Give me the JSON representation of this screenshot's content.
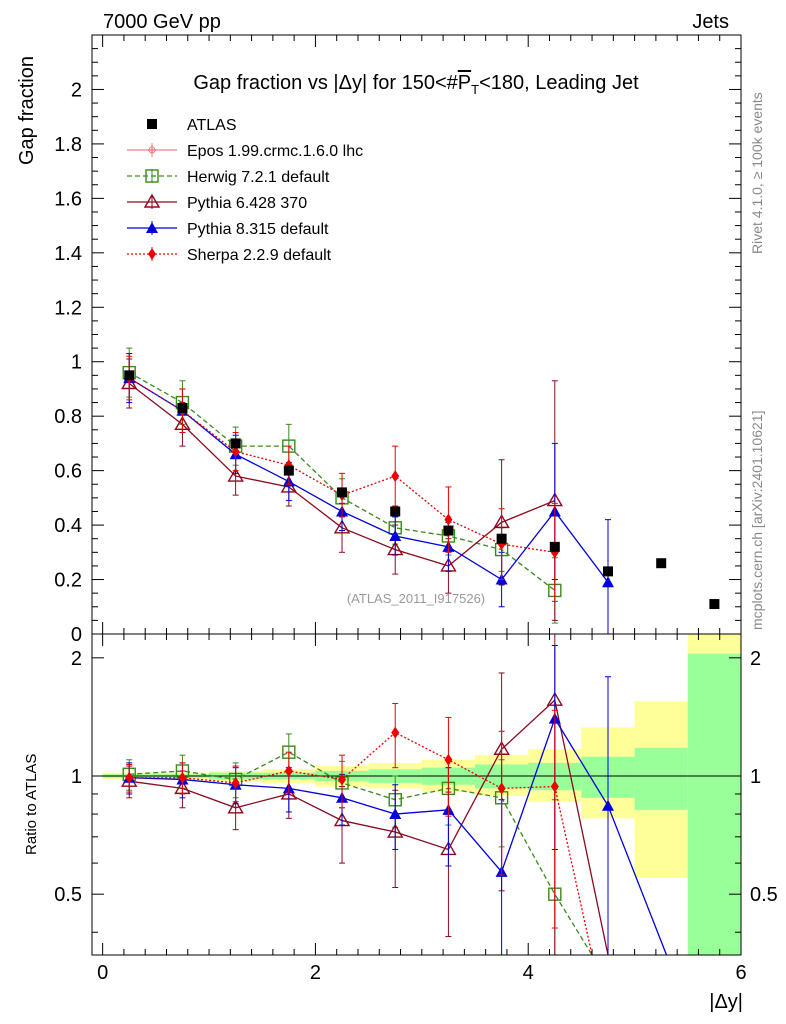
{
  "header": {
    "left": "7000 GeV pp",
    "right": "Jets"
  },
  "side_texts": {
    "rivet": "Rivet 4.1.0, ≥ 100k events",
    "mcplots": "mcplots.cern.ch [arXiv:2401.10621]"
  },
  "chart_data": {
    "type": "line",
    "title": "Gap fraction vs |Δy| for 150<#bar{P}_{T}<180, Leading Jet",
    "title_parts": {
      "pre": "Gap fraction vs |Δy| for 150<#",
      "p": "P",
      "sub": "T",
      "post": "<180, Leading Jet"
    },
    "xlabel": "|Δy|",
    "ylabel": "Gap fraction",
    "ratio_ylabel": "Ratio to ATLAS",
    "watermark": "(ATLAS_2011_I917526)",
    "xlim": [
      -0.1,
      6.0
    ],
    "ylim": [
      0,
      2.2
    ],
    "ratio_ylim": [
      0.35,
      2.3
    ],
    "x_ticks": [
      0,
      2,
      4,
      6
    ],
    "y_ticks": [
      0,
      0.2,
      0.4,
      0.6,
      0.8,
      1,
      1.2,
      1.4,
      1.6,
      1.8,
      2
    ],
    "ratio_ticks": [
      0.5,
      1,
      2
    ],
    "data": {
      "name": "ATLAS",
      "x": [
        0.25,
        0.75,
        1.25,
        1.75,
        2.25,
        2.75,
        3.25,
        3.75,
        4.25,
        4.75,
        5.25,
        5.75
      ],
      "y": [
        0.95,
        0.83,
        0.7,
        0.6,
        0.52,
        0.45,
        0.38,
        0.35,
        0.32,
        0.23,
        0.26,
        0.11
      ]
    },
    "ratio_band": {
      "edges": [
        0,
        0.5,
        1,
        1.5,
        2,
        2.5,
        3,
        3.5,
        4,
        4.5,
        5,
        5.5,
        6
      ],
      "green_lo": [
        0.99,
        0.99,
        0.98,
        0.98,
        0.97,
        0.96,
        0.95,
        0.93,
        0.92,
        0.88,
        0.82,
        0.35
      ],
      "green_hi": [
        1.01,
        1.01,
        1.02,
        1.02,
        1.03,
        1.04,
        1.05,
        1.07,
        1.08,
        1.12,
        1.18,
        2.05
      ],
      "yellow_lo": [
        0.98,
        0.98,
        0.97,
        0.96,
        0.94,
        0.93,
        0.91,
        0.89,
        0.86,
        0.78,
        0.55,
        0.35
      ],
      "yellow_hi": [
        1.02,
        1.02,
        1.03,
        1.04,
        1.06,
        1.08,
        1.1,
        1.13,
        1.17,
        1.33,
        1.55,
        2.4
      ]
    },
    "series": [
      {
        "name": "Epos 1.99.crmc.1.6.0 lhc",
        "color": "#f08080",
        "dash": "",
        "marker": "plus",
        "x": [],
        "y": [],
        "yerr": [],
        "ratio": [],
        "ratio_err": []
      },
      {
        "name": "Herwig 7.2.1 default",
        "color": "#3a8a1a",
        "dash": "5,3",
        "marker": "open-square",
        "x": [
          0.25,
          0.75,
          1.25,
          1.75,
          2.25,
          2.75,
          3.25,
          3.75,
          4.25
        ],
        "y": [
          0.96,
          0.85,
          0.69,
          0.69,
          0.5,
          0.39,
          0.36,
          0.31,
          0.16
        ],
        "yerr": [
          0.09,
          0.08,
          0.07,
          0.08,
          0.07,
          0.06,
          0.07,
          0.08,
          0.12
        ],
        "ratio": [
          1.01,
          1.03,
          0.98,
          1.15,
          0.96,
          0.87,
          0.93,
          0.88,
          0.5
        ],
        "ratio_err": [
          0.09,
          0.1,
          0.1,
          0.13,
          0.13,
          0.13,
          0.18,
          0.22,
          0.37
        ],
        "ratio_tail": [
          4.6,
          0.35
        ]
      },
      {
        "name": "Pythia 6.428 370",
        "color": "#8b0a1e",
        "dash": "",
        "marker": "open-triangle",
        "x": [
          0.25,
          0.75,
          1.25,
          1.75,
          2.25,
          2.75,
          3.25,
          3.75,
          4.25
        ],
        "y": [
          0.92,
          0.77,
          0.58,
          0.54,
          0.39,
          0.31,
          0.25,
          0.41,
          0.49
        ],
        "yerr": [
          0.09,
          0.08,
          0.07,
          0.07,
          0.09,
          0.09,
          0.1,
          0.23,
          0.44
        ],
        "ratio": [
          0.97,
          0.93,
          0.83,
          0.9,
          0.77,
          0.72,
          0.65,
          1.17,
          1.56
        ],
        "ratio_err": [
          0.09,
          0.1,
          0.1,
          0.12,
          0.17,
          0.2,
          0.26,
          0.66,
          1.37
        ],
        "ratio_tail": [
          4.75,
          0.35
        ]
      },
      {
        "name": "Pythia 8.315 default",
        "color": "#0000dd",
        "dash": "",
        "marker": "triangle",
        "x": [
          0.25,
          0.75,
          1.25,
          1.75,
          2.25,
          2.75,
          3.25,
          3.75,
          4.25,
          4.75
        ],
        "y": [
          0.94,
          0.82,
          0.66,
          0.56,
          0.45,
          0.36,
          0.32,
          0.2,
          0.45,
          0.19
        ],
        "yerr": [
          0.09,
          0.08,
          0.07,
          0.07,
          0.07,
          0.07,
          0.09,
          0.1,
          0.25,
          0.23
        ],
        "ratio": [
          0.99,
          0.98,
          0.95,
          0.93,
          0.88,
          0.8,
          0.82,
          0.57,
          1.4,
          0.84
        ],
        "ratio_err": [
          0.09,
          0.1,
          0.1,
          0.12,
          0.13,
          0.15,
          0.23,
          0.3,
          0.75,
          0.95
        ],
        "ratio_tail": [
          5.3,
          0.35
        ]
      },
      {
        "name": "Sherpa 2.2.9 default",
        "color": "#ee0000",
        "dash": "2,2",
        "marker": "diamond",
        "x": [
          0.25,
          0.75,
          1.25,
          1.75,
          2.25,
          2.75,
          3.25,
          3.75,
          4.25
        ],
        "y": [
          0.94,
          0.82,
          0.67,
          0.62,
          0.51,
          0.58,
          0.42,
          0.33,
          0.3
        ],
        "yerr": [
          0.08,
          0.08,
          0.07,
          0.07,
          0.08,
          0.11,
          0.12,
          0.13,
          0.18
        ],
        "ratio": [
          0.99,
          0.99,
          0.96,
          1.03,
          0.98,
          1.29,
          1.1,
          0.93,
          0.94
        ],
        "ratio_err": [
          0.08,
          0.09,
          0.1,
          0.12,
          0.15,
          0.24,
          0.31,
          0.37,
          0.53
        ],
        "ratio_tail": [
          4.6,
          0.35
        ]
      }
    ]
  }
}
